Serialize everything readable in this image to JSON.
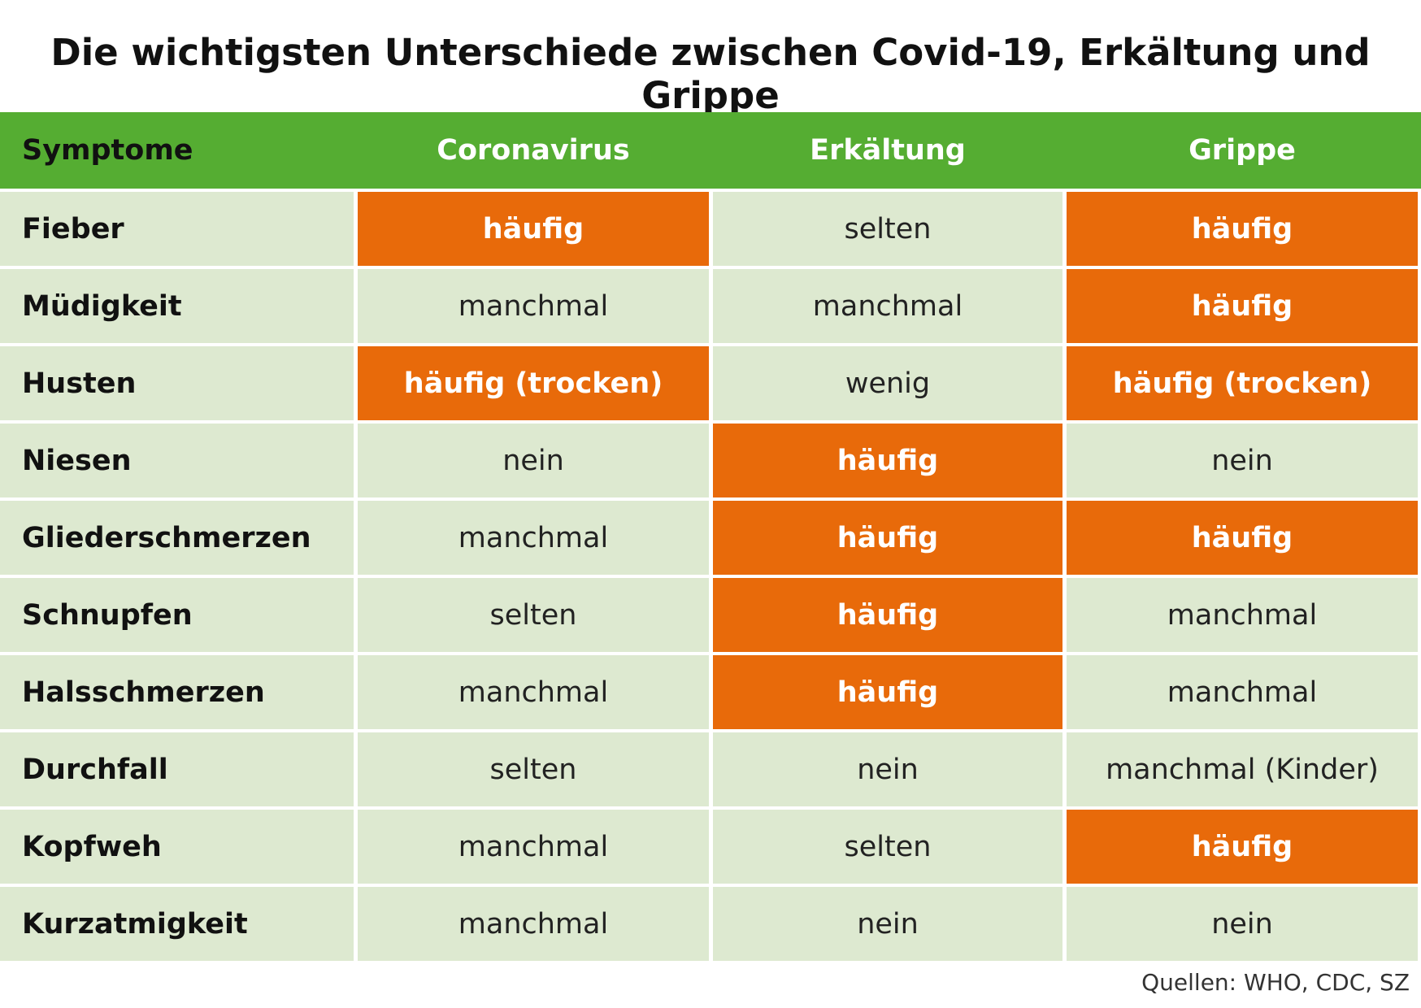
{
  "title": "Die wichtigsten Unterschiede zwischen Covid-19, Erkältung und Grippe",
  "table": {
    "header": [
      "Symptome",
      "Coronavirus",
      "Erkältung",
      "Grippe"
    ],
    "rows": [
      {
        "label": "Fieber",
        "cells": [
          {
            "text": "häufig",
            "highlight": true
          },
          {
            "text": "selten",
            "highlight": false
          },
          {
            "text": "häufig",
            "highlight": true
          }
        ]
      },
      {
        "label": "Müdigkeit",
        "cells": [
          {
            "text": "manchmal",
            "highlight": false
          },
          {
            "text": "manchmal",
            "highlight": false
          },
          {
            "text": "häufig",
            "highlight": true
          }
        ]
      },
      {
        "label": "Husten",
        "cells": [
          {
            "text": "häufig (trocken)",
            "highlight": true
          },
          {
            "text": "wenig",
            "highlight": false
          },
          {
            "text": "häufig (trocken)",
            "highlight": true
          }
        ]
      },
      {
        "label": "Niesen",
        "cells": [
          {
            "text": "nein",
            "highlight": false
          },
          {
            "text": "häufig",
            "highlight": true
          },
          {
            "text": "nein",
            "highlight": false
          }
        ]
      },
      {
        "label": "Gliederschmerzen",
        "cells": [
          {
            "text": "manchmal",
            "highlight": false
          },
          {
            "text": "häufig",
            "highlight": true
          },
          {
            "text": "häufig",
            "highlight": true
          }
        ]
      },
      {
        "label": "Schnupfen",
        "cells": [
          {
            "text": "selten",
            "highlight": false
          },
          {
            "text": "häufig",
            "highlight": true
          },
          {
            "text": "manchmal",
            "highlight": false
          }
        ]
      },
      {
        "label": "Halsschmerzen",
        "cells": [
          {
            "text": "manchmal",
            "highlight": false
          },
          {
            "text": "häufig",
            "highlight": true
          },
          {
            "text": "manchmal",
            "highlight": false
          }
        ]
      },
      {
        "label": "Durchfall",
        "cells": [
          {
            "text": "selten",
            "highlight": false
          },
          {
            "text": "nein",
            "highlight": false
          },
          {
            "text": "manchmal (Kinder)",
            "highlight": false
          }
        ]
      },
      {
        "label": "Kopfweh",
        "cells": [
          {
            "text": "manchmal",
            "highlight": false
          },
          {
            "text": "selten",
            "highlight": false
          },
          {
            "text": "häufig",
            "highlight": true
          }
        ]
      },
      {
        "label": "Kurzatmigkeit",
        "cells": [
          {
            "text": "manchmal",
            "highlight": false
          },
          {
            "text": "nein",
            "highlight": false
          },
          {
            "text": "nein",
            "highlight": false
          }
        ]
      }
    ]
  },
  "source": "Quellen: WHO, CDC, SZ"
}
